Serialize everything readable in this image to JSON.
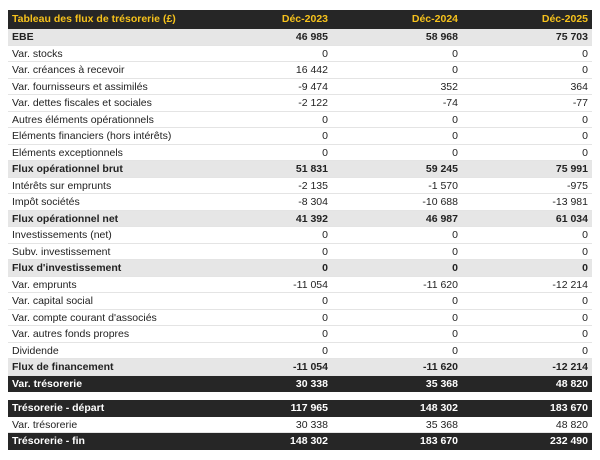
{
  "header": {
    "title": "Tableau des flux de trésorerie (£)",
    "columns": [
      "Déc-2023",
      "Déc-2024",
      "Déc-2025"
    ]
  },
  "table": {
    "rows": [
      {
        "label": "EBE",
        "values": [
          "46 985",
          "58 968",
          "75 703"
        ],
        "style": "subtotal"
      },
      {
        "label": "Var. stocks",
        "values": [
          "0",
          "0",
          "0"
        ],
        "style": "normal"
      },
      {
        "label": "Var. créances à recevoir",
        "values": [
          "16 442",
          "0",
          "0"
        ],
        "style": "normal"
      },
      {
        "label": "Var. fournisseurs et assimilés",
        "values": [
          "-9 474",
          "352",
          "364"
        ],
        "style": "normal"
      },
      {
        "label": "Var. dettes fiscales et sociales",
        "values": [
          "-2 122",
          "-74",
          "-77"
        ],
        "style": "normal"
      },
      {
        "label": "Autres éléments opérationnels",
        "values": [
          "0",
          "0",
          "0"
        ],
        "style": "normal"
      },
      {
        "label": "Eléments financiers (hors intérêts)",
        "values": [
          "0",
          "0",
          "0"
        ],
        "style": "normal"
      },
      {
        "label": "Eléments exceptionnels",
        "values": [
          "0",
          "0",
          "0"
        ],
        "style": "normal"
      },
      {
        "label": "Flux opérationnel brut",
        "values": [
          "51 831",
          "59 245",
          "75 991"
        ],
        "style": "subtotal"
      },
      {
        "label": "Intérêts sur emprunts",
        "values": [
          "-2 135",
          "-1 570",
          "-975"
        ],
        "style": "normal"
      },
      {
        "label": "Impôt sociétés",
        "values": [
          "-8 304",
          "-10 688",
          "-13 981"
        ],
        "style": "normal"
      },
      {
        "label": "Flux opérationnel net",
        "values": [
          "41 392",
          "46 987",
          "61 034"
        ],
        "style": "subtotal"
      },
      {
        "label": "Investissements (net)",
        "values": [
          "0",
          "0",
          "0"
        ],
        "style": "normal"
      },
      {
        "label": "Subv. investissement",
        "values": [
          "0",
          "0",
          "0"
        ],
        "style": "normal"
      },
      {
        "label": "Flux d'investissement",
        "values": [
          "0",
          "0",
          "0"
        ],
        "style": "subtotal"
      },
      {
        "label": "Var. emprunts",
        "values": [
          "-11 054",
          "-11 620",
          "-12 214"
        ],
        "style": "normal"
      },
      {
        "label": "Var. capital social",
        "values": [
          "0",
          "0",
          "0"
        ],
        "style": "normal"
      },
      {
        "label": "Var. compte courant d'associés",
        "values": [
          "0",
          "0",
          "0"
        ],
        "style": "normal"
      },
      {
        "label": "Var. autres fonds propres",
        "values": [
          "0",
          "0",
          "0"
        ],
        "style": "normal"
      },
      {
        "label": "Dividende",
        "values": [
          "0",
          "0",
          "0"
        ],
        "style": "normal"
      },
      {
        "label": "Flux de financement",
        "values": [
          "-11 054",
          "-11 620",
          "-12 214"
        ],
        "style": "subtotal"
      },
      {
        "label": "Var. trésorerie",
        "values": [
          "30 338",
          "35 368",
          "48 820"
        ],
        "style": "total"
      }
    ]
  },
  "summary": {
    "rows": [
      {
        "label": "Trésorerie - départ",
        "values": [
          "117 965",
          "148 302",
          "183 670"
        ],
        "style": "total"
      },
      {
        "label": "Var. trésorerie",
        "values": [
          "30 338",
          "35 368",
          "48 820"
        ],
        "style": "normal"
      },
      {
        "label": "Trésorerie - fin",
        "values": [
          "148 302",
          "183 670",
          "232 490"
        ],
        "style": "total"
      }
    ]
  }
}
